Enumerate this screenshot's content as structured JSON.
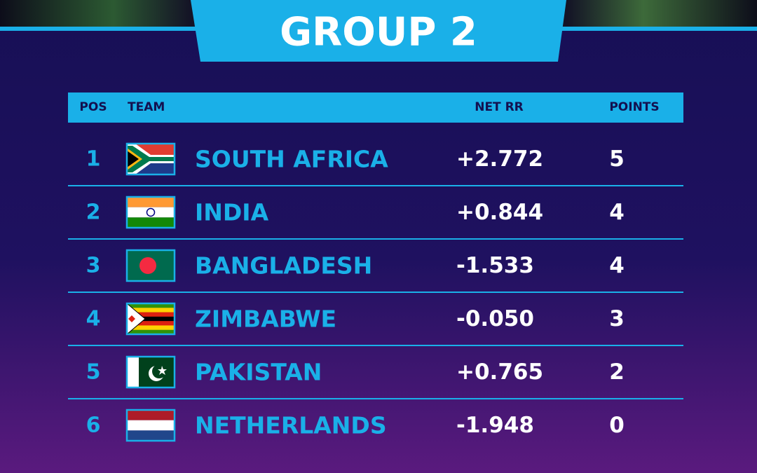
{
  "header": {
    "title": "GROUP 2"
  },
  "table": {
    "columns": [
      "POS",
      "TEAM",
      "NET RR",
      "POINTS"
    ],
    "rows": [
      [
        "1",
        "SOUTH AFRICA",
        "+2.772",
        "5"
      ],
      [
        "2",
        "INDIA",
        "+0.844",
        "4"
      ],
      [
        "3",
        "BANGLADESH",
        "-1.533",
        "4"
      ],
      [
        "4",
        "ZIMBABWE",
        "-0.050",
        "3"
      ],
      [
        "5",
        "PAKISTAN",
        "+0.765",
        "2"
      ],
      [
        "6",
        "NETHERLANDS",
        "-1.948",
        "0"
      ]
    ]
  }
}
